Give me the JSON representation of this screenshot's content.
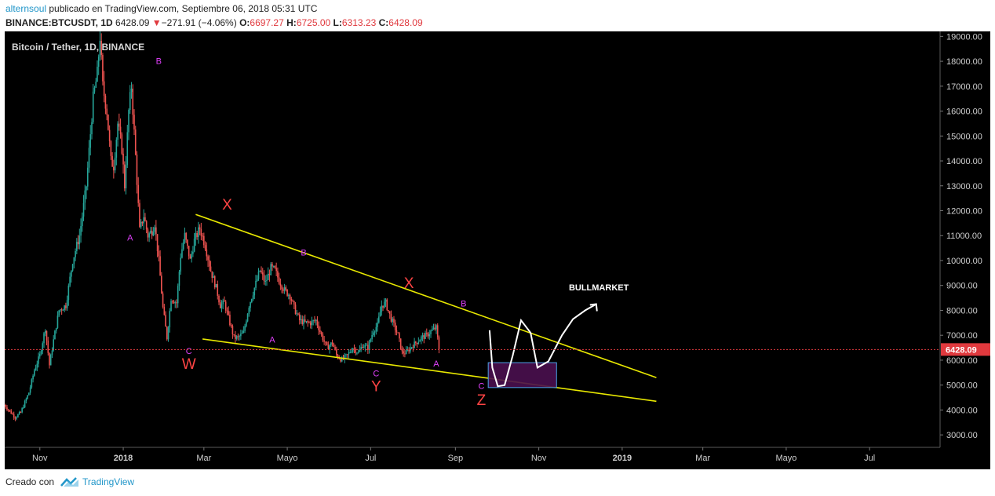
{
  "header": {
    "user": "alternsoul",
    "published_text": "publicado en TradingView.com, Septiembre 06, 2018 05:31 UTC",
    "symbol": "BINANCE:BTCUSDT, 1D",
    "last": "6428.09",
    "change_arrow": "▼",
    "change": "−271.91 (−4.06%)",
    "open_label": "O:",
    "open": "6697.27",
    "high_label": "H:",
    "high": "6725.00",
    "low_label": "L:",
    "low": "6313.23",
    "close_label": "C:",
    "close": "6428.09"
  },
  "footer": {
    "created_with": "Creado con",
    "brand": "TradingView"
  },
  "chart_data": {
    "type": "candlestick",
    "title": "Bitcoin / Tether, 1D, BINANCE",
    "ylim": [
      2500,
      19200
    ],
    "y_ticks": [
      3000,
      4000,
      5000,
      6000,
      7000,
      8000,
      9000,
      10000,
      11000,
      12000,
      13000,
      14000,
      15000,
      16000,
      17000,
      18000,
      19000
    ],
    "x_ticks": [
      "Nov",
      "2018",
      "Mar",
      "Mayo",
      "Jul",
      "Sep",
      "Nov",
      "2019",
      "Mar",
      "Mayo",
      "Jul"
    ],
    "x_tick_day_offsets": [
      26,
      87,
      146,
      207,
      268,
      330,
      391,
      452,
      511,
      572,
      633
    ],
    "start": "2017-10-06",
    "last_price": 6428.09,
    "last_price_label": "6428.09",
    "price_path": [
      [
        0,
        4200
      ],
      [
        8,
        3700
      ],
      [
        12,
        3900
      ],
      [
        18,
        4700
      ],
      [
        22,
        5600
      ],
      [
        26,
        6200
      ],
      [
        30,
        7300
      ],
      [
        33,
        5800
      ],
      [
        36,
        6800
      ],
      [
        40,
        8000
      ],
      [
        45,
        8200
      ],
      [
        50,
        10000
      ],
      [
        55,
        11000
      ],
      [
        60,
        13000
      ],
      [
        65,
        16500
      ],
      [
        68,
        17500
      ],
      [
        70,
        19000
      ],
      [
        72,
        17000
      ],
      [
        75,
        16000
      ],
      [
        78,
        14000
      ],
      [
        80,
        13800
      ],
      [
        83,
        15500
      ],
      [
        86,
        14500
      ],
      [
        88,
        13000
      ],
      [
        91,
        16000
      ],
      [
        93,
        17000
      ],
      [
        96,
        14200
      ],
      [
        99,
        11200
      ],
      [
        102,
        11800
      ],
      [
        105,
        11000
      ],
      [
        108,
        11200
      ],
      [
        110,
        11500
      ],
      [
        113,
        10000
      ],
      [
        116,
        8100
      ],
      [
        119,
        6900
      ],
      [
        122,
        8500
      ],
      [
        126,
        8300
      ],
      [
        129,
        10200
      ],
      [
        132,
        11000
      ],
      [
        136,
        10000
      ],
      [
        139,
        10800
      ],
      [
        143,
        11300
      ],
      [
        147,
        10600
      ],
      [
        151,
        9600
      ],
      [
        155,
        8900
      ],
      [
        158,
        8200
      ],
      [
        161,
        8300
      ],
      [
        164,
        7700
      ],
      [
        168,
        6900
      ],
      [
        171,
        6900
      ],
      [
        175,
        7100
      ],
      [
        179,
        8200
      ],
      [
        183,
        8900
      ],
      [
        187,
        9600
      ],
      [
        191,
        9100
      ],
      [
        195,
        9700
      ],
      [
        198,
        9600
      ],
      [
        201,
        9200
      ],
      [
        205,
        8800
      ],
      [
        209,
        8600
      ],
      [
        212,
        8100
      ],
      [
        216,
        7600
      ],
      [
        220,
        7500
      ],
      [
        224,
        7500
      ],
      [
        228,
        7600
      ],
      [
        232,
        7000
      ],
      [
        236,
        6500
      ],
      [
        240,
        6700
      ],
      [
        243,
        6200
      ],
      [
        247,
        6000
      ],
      [
        251,
        6200
      ],
      [
        255,
        6500
      ],
      [
        259,
        6300
      ],
      [
        262,
        6600
      ],
      [
        266,
        6500
      ],
      [
        270,
        7200
      ],
      [
        273,
        7400
      ],
      [
        276,
        8200
      ],
      [
        279,
        8300
      ],
      [
        282,
        7800
      ],
      [
        285,
        7400
      ],
      [
        288,
        7000
      ],
      [
        291,
        6300
      ],
      [
        294,
        6300
      ],
      [
        297,
        6500
      ],
      [
        301,
        6700
      ],
      [
        305,
        6900
      ],
      [
        309,
        7000
      ],
      [
        313,
        7200
      ],
      [
        316,
        7300
      ],
      [
        318,
        6428
      ]
    ],
    "wave_labels": [
      {
        "text": "A",
        "day": 92,
        "price": 10800,
        "color": "#e040fb"
      },
      {
        "text": "B",
        "day": 113,
        "price": 17900,
        "color": "#e040fb"
      },
      {
        "text": "C",
        "day": 135,
        "price": 6250,
        "color": "#e040fb"
      },
      {
        "text": "W",
        "day": 135,
        "price": 5650,
        "color": "#ff4444"
      },
      {
        "text": "X",
        "day": 163,
        "price": 12050,
        "color": "#ff4444"
      },
      {
        "text": "A",
        "day": 196,
        "price": 6700,
        "color": "#e040fb"
      },
      {
        "text": "B",
        "day": 219,
        "price": 10200,
        "color": "#e040fb"
      },
      {
        "text": "C",
        "day": 272,
        "price": 5350,
        "color": "#e040fb"
      },
      {
        "text": "Y",
        "day": 272,
        "price": 4750,
        "color": "#ff4444"
      },
      {
        "text": "X",
        "day": 296,
        "price": 8900,
        "color": "#ff4444"
      },
      {
        "text": "A",
        "day": 316,
        "price": 5750,
        "color": "#e040fb"
      },
      {
        "text": "B",
        "day": 336,
        "price": 8150,
        "color": "#e040fb"
      },
      {
        "text": "C",
        "day": 349,
        "price": 4850,
        "color": "#e040fb"
      },
      {
        "text": "Z",
        "day": 349,
        "price": 4200,
        "color": "#ff4444"
      }
    ],
    "annotation": "BULLMARKET"
  }
}
